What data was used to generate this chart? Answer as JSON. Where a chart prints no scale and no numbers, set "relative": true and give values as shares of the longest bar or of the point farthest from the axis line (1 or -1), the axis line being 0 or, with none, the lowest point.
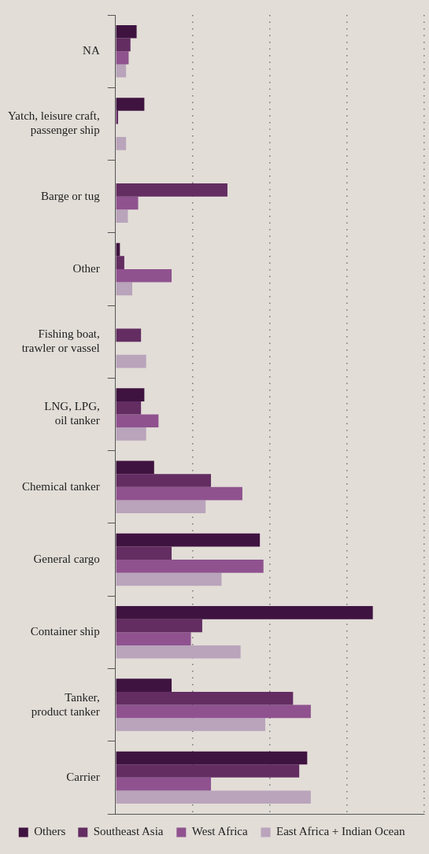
{
  "chart_data": {
    "type": "bar",
    "orientation": "horizontal",
    "relative": true,
    "grid": "x",
    "legend": "bottom",
    "categories": [
      "NA",
      "Yatch, leisure craft, passenger ship",
      "Barge or tug",
      "Other",
      "Fishing boat, trawler or vassel",
      "LNG, LPG, oil tanker",
      "Chemical tanker",
      "General cargo",
      "Container ship",
      "Tanker, product tanker",
      "Carrier"
    ],
    "series": [
      {
        "name": "Others",
        "color": "#3f1340",
        "values": [
          0.082,
          0.112,
          null,
          0.017,
          null,
          0.112,
          0.15,
          0.561,
          1,
          0.218,
          0.745
        ]
      },
      {
        "name": "Southeast Asia",
        "color": "#632d62",
        "values": [
          0.058,
          0.01,
          0.435,
          0.034,
          0.099,
          0.099,
          0.371,
          0.218,
          0.337,
          0.69,
          0.714
        ]
      },
      {
        "name": "West Africa",
        "color": "#8f528f",
        "values": [
          0.051,
          null,
          0.088,
          0.218,
          null,
          0.167,
          0.493,
          0.575,
          0.293,
          0.759,
          0.371
        ]
      },
      {
        "name": "East Africa + Indian Ocean",
        "color": "#b9a4bb",
        "values": [
          0.041,
          0.041,
          0.048,
          0.065,
          0.119,
          0.119,
          0.35,
          0.412,
          0.486,
          0.582,
          0.759
        ]
      }
    ]
  }
}
